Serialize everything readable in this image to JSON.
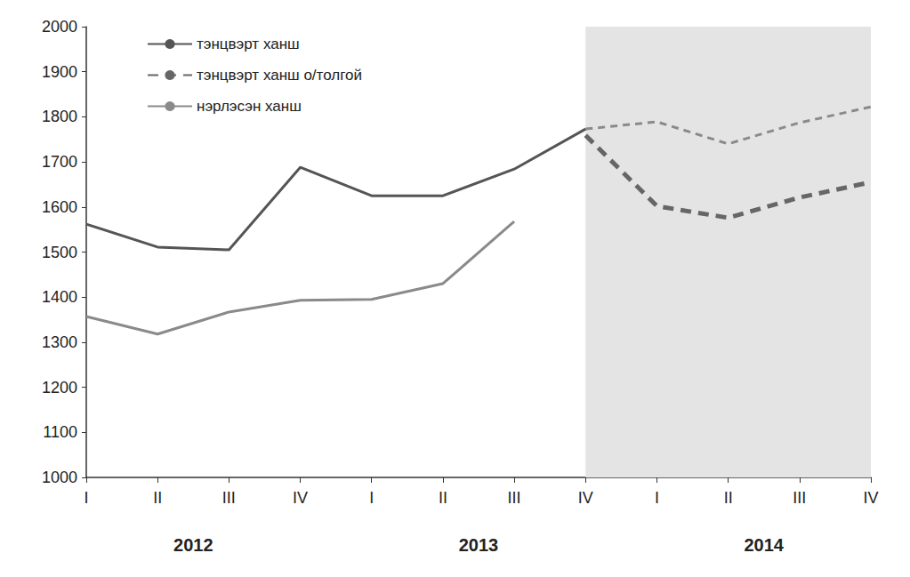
{
  "chart_data": {
    "type": "line",
    "categories": [
      "I",
      "II",
      "III",
      "IV",
      "I",
      "II",
      "III",
      "IV",
      "I",
      "II",
      "III",
      "IV"
    ],
    "category_groups": [
      {
        "label": "2012",
        "start": 0,
        "end": 3
      },
      {
        "label": "2013",
        "start": 4,
        "end": 7
      },
      {
        "label": "2014",
        "start": 8,
        "end": 11
      }
    ],
    "shaded_range": [
      7,
      11
    ],
    "series": [
      {
        "name": "тэнцвэрт ханш",
        "color": "#555555",
        "line_style": "solid",
        "values": [
          1562,
          1511,
          1505,
          1688,
          1625,
          1625,
          1684,
          1773,
          null,
          null,
          null,
          null
        ],
        "forecast_values": [
          null,
          null,
          null,
          null,
          null,
          null,
          null,
          1773,
          1789,
          1740,
          1787,
          1822
        ],
        "forecast_color": "#8a8a8a",
        "forecast_line_style": "dashed"
      },
      {
        "name": "тэнцвэрт ханш о/толгой",
        "color": "#666666",
        "line_style": "dashed",
        "values": [
          null,
          null,
          null,
          null,
          null,
          null,
          null,
          1759,
          1602,
          1576,
          1621,
          1655
        ]
      },
      {
        "name": "нэрлэсэн ханш",
        "color": "#8a8a8a",
        "line_style": "solid",
        "values": [
          1357,
          1318,
          1367,
          1393,
          1395,
          1430,
          1568,
          null,
          null,
          null,
          null,
          null
        ]
      }
    ],
    "ylim": [
      1000,
      2000
    ],
    "yticks": [
      1000,
      1100,
      1200,
      1300,
      1400,
      1500,
      1600,
      1700,
      1800,
      1900,
      2000
    ],
    "grid": false,
    "legend": "upper left"
  }
}
